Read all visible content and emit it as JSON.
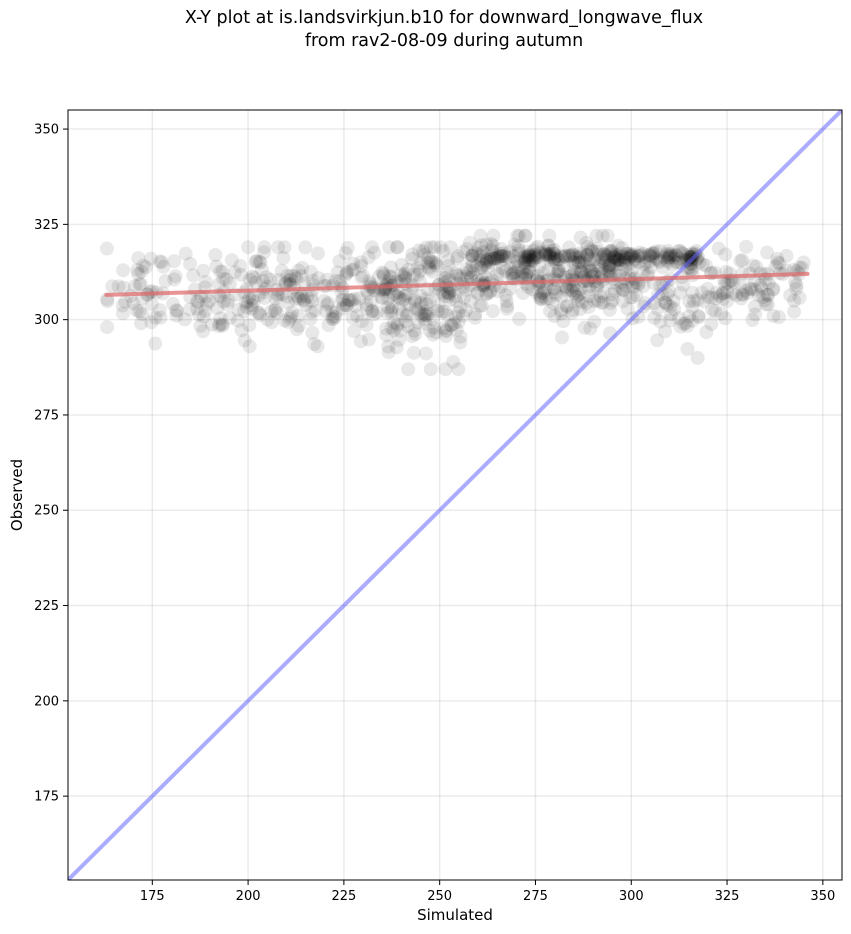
{
  "chart_data": {
    "type": "scatter",
    "title": "X-Y plot at is.landsvirkjun.b10 for downward_longwave_flux",
    "subtitle": "from rav2-08-09 during autumn",
    "xlabel": "Simulated",
    "ylabel": "Observed",
    "xlim": [
      153,
      355
    ],
    "ylim": [
      153,
      355
    ],
    "xticks": [
      175,
      200,
      225,
      250,
      275,
      300,
      325,
      350
    ],
    "yticks": [
      175,
      200,
      225,
      250,
      275,
      300,
      325,
      350
    ],
    "grid": true,
    "legend": "none",
    "point_color": "#000000",
    "regression_color": "#e06666",
    "identity_color": "#6666ff",
    "regression_line": {
      "x": [
        163,
        346
      ],
      "y": [
        306.5,
        312
      ]
    },
    "identity_line": {
      "x": [
        153,
        355
      ],
      "y": [
        153,
        355
      ]
    },
    "point_clouds": [
      {
        "x_range": [
          163,
          200
        ],
        "y_mean": 307,
        "y_sd": 5.5,
        "y_range": [
          290,
          319
        ],
        "count": 110
      },
      {
        "x_range": [
          200,
          235
        ],
        "y_mean": 307,
        "y_sd": 5.5,
        "y_range": [
          293,
          319
        ],
        "count": 170
      },
      {
        "x_range": [
          235,
          256
        ],
        "y_mean": 305,
        "y_sd": 7.5,
        "y_range": [
          287,
          319
        ],
        "count": 180
      },
      {
        "x_range": [
          256,
          300
        ],
        "y_mean": 311,
        "y_sd": 5.5,
        "y_range": [
          289,
          322
        ],
        "count": 300
      },
      {
        "x_range": [
          258,
          318
        ],
        "y_mean": 316.5,
        "y_sd": 0.8,
        "y_range": [
          315,
          318
        ],
        "count": 180
      },
      {
        "x_range": [
          300,
          320
        ],
        "y_mean": 307,
        "y_sd": 6.5,
        "y_range": [
          289,
          318
        ],
        "count": 90
      },
      {
        "x_range": [
          320,
          346
        ],
        "y_mean": 308,
        "y_sd": 5,
        "y_range": [
          294,
          320
        ],
        "count": 90
      }
    ]
  }
}
